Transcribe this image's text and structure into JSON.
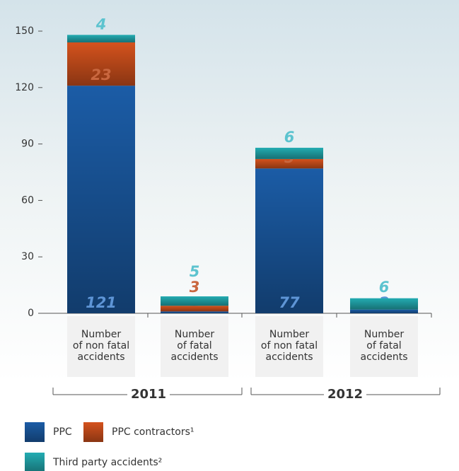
{
  "chart_data": {
    "type": "stacked_bar",
    "categories": [
      "Number\nof non fatal\naccidents",
      "Number\nof fatal\naccidents",
      "Number\nof non fatal\naccidents",
      "Number\nof fatal\naccidents"
    ],
    "groups": [
      "2011",
      "2012"
    ],
    "series": [
      {
        "name": "PPC",
        "color": "#1b5ca6",
        "label_color": "#5e95d6",
        "values": [
          121,
          1,
          77,
          2
        ]
      },
      {
        "name": "PPC contractors¹",
        "color": "#d4521d",
        "label_color": "#c9673f",
        "values": [
          23,
          3,
          5,
          null
        ]
      },
      {
        "name": "Third party accidents²",
        "color": "#23acb2",
        "label_color": "#5cc3cf",
        "values": [
          4,
          5,
          6,
          6
        ]
      }
    ],
    "ylim": [
      0,
      150
    ],
    "yticks": [
      0,
      30,
      60,
      90,
      120,
      150
    ]
  }
}
